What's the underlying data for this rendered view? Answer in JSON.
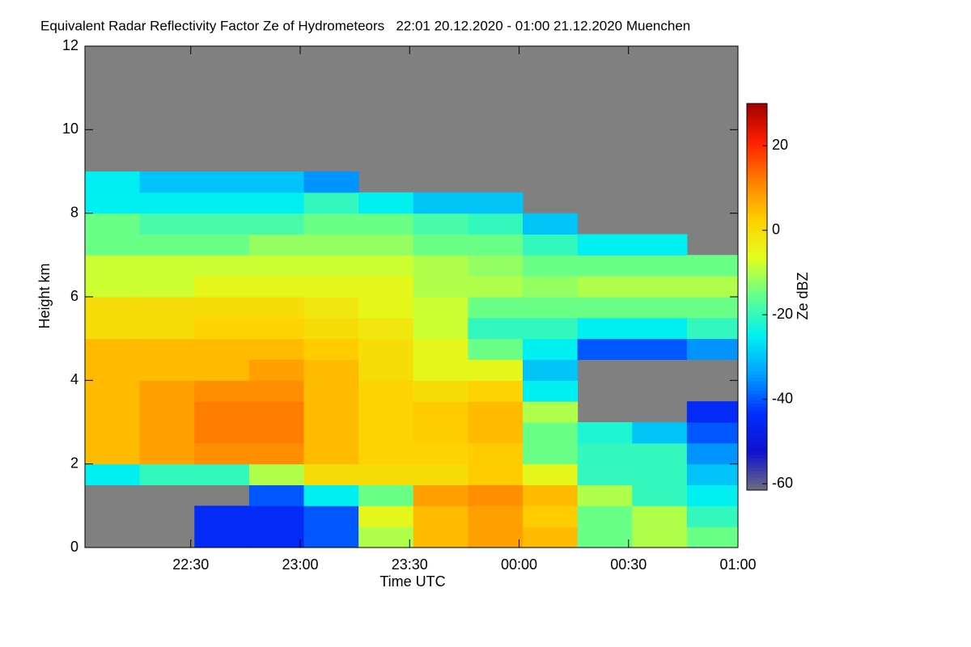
{
  "chart_data": {
    "type": "heatmap",
    "title": "Equivalent Radar Reflectivity Factor Ze of Hydrometeors   22:01 20.12.2020 - 01:00 21.12.2020 Muenchen",
    "x_label": "Time UTC",
    "y_label": "Height km",
    "colorbar_label": "Ze dBZ",
    "xlim": [
      1,
      180
    ],
    "xticks": [
      {
        "value": 30,
        "label": "22:30"
      },
      {
        "value": 60,
        "label": "23:00"
      },
      {
        "value": 90,
        "label": "23:30"
      },
      {
        "value": 120,
        "label": "00:00"
      },
      {
        "value": 150,
        "label": "00:30"
      },
      {
        "value": 180,
        "label": "01:00"
      }
    ],
    "ylim": [
      0,
      12
    ],
    "yticks": [
      0,
      2,
      4,
      6,
      8,
      10,
      12
    ],
    "xbins": [
      1,
      16,
      31,
      46,
      61,
      76,
      91,
      106,
      121,
      136,
      151,
      166,
      180
    ],
    "ybins": [
      0,
      0.5,
      1,
      1.5,
      2,
      2.5,
      3,
      3.5,
      4,
      4.5,
      5,
      5.5,
      6,
      6.5,
      7,
      7.5,
      8,
      8.5,
      9,
      9.5,
      10,
      10.5,
      11,
      11.5,
      12
    ],
    "z": [
      [
        null,
        null,
        null,
        -25,
        5,
        5,
        5,
        5,
        5,
        5,
        0,
        0,
        -8,
        -8,
        -15,
        -15,
        -25,
        -25,
        null,
        null,
        null,
        null,
        null,
        null
      ],
      [
        null,
        null,
        null,
        -20,
        8,
        8,
        8,
        8,
        5,
        5,
        0,
        0,
        -8,
        -8,
        -15,
        -18,
        -25,
        -30,
        null,
        null,
        null,
        null,
        null,
        null
      ],
      [
        -45,
        -45,
        null,
        -20,
        10,
        12,
        12,
        10,
        5,
        5,
        2,
        0,
        -5,
        -8,
        -15,
        -18,
        -25,
        -30,
        null,
        null,
        null,
        null,
        null,
        null
      ],
      [
        -45,
        -45,
        -40,
        -10,
        10,
        12,
        12,
        10,
        8,
        5,
        2,
        0,
        -5,
        -8,
        -12,
        -18,
        -25,
        -30,
        null,
        null,
        null,
        null,
        null,
        null
      ],
      [
        -40,
        -40,
        -25,
        0,
        5,
        5,
        5,
        5,
        5,
        3,
        0,
        -2,
        -5,
        -8,
        -12,
        -15,
        -20,
        -35,
        null,
        null,
        null,
        null,
        null,
        null
      ],
      [
        -10,
        -5,
        -15,
        0,
        2,
        2,
        2,
        2,
        0,
        0,
        -2,
        -5,
        -5,
        -8,
        -12,
        -15,
        -25,
        null,
        null,
        null,
        null,
        null,
        null,
        null
      ],
      [
        5,
        5,
        8,
        0,
        2,
        3,
        3,
        0,
        -5,
        -5,
        -8,
        -8,
        -10,
        -10,
        -15,
        -18,
        -30,
        null,
        null,
        null,
        null,
        null,
        null,
        null
      ],
      [
        8,
        8,
        10,
        3,
        3,
        5,
        5,
        2,
        -5,
        -15,
        -20,
        -15,
        -10,
        -12,
        -15,
        -20,
        -30,
        null,
        null,
        null,
        null,
        null,
        null,
        null
      ],
      [
        5,
        3,
        5,
        -5,
        -15,
        -15,
        -10,
        -25,
        -30,
        -25,
        -20,
        -15,
        -12,
        -15,
        -20,
        -30,
        null,
        null,
        null,
        null,
        null,
        null,
        null,
        null
      ],
      [
        -15,
        -15,
        -10,
        -20,
        -20,
        -22,
        null,
        null,
        null,
        -40,
        -25,
        -15,
        -10,
        -15,
        -25,
        null,
        null,
        null,
        null,
        null,
        null,
        null,
        null,
        null
      ],
      [
        -10,
        -10,
        -20,
        -20,
        -20,
        -30,
        null,
        null,
        null,
        -40,
        -25,
        -15,
        -10,
        -15,
        -25,
        null,
        null,
        null,
        null,
        null,
        null,
        null,
        null,
        null
      ],
      [
        -15,
        -20,
        -25,
        -30,
        -35,
        -40,
        -45,
        null,
        null,
        -35,
        -20,
        -15,
        -10,
        -15,
        null,
        null,
        null,
        null,
        null,
        null,
        null,
        null,
        null,
        null
      ]
    ],
    "zlim": [
      -61.5,
      30
    ],
    "zticks": [
      -60,
      -40,
      -20,
      0,
      20
    ],
    "colorscale": [
      "#6e6e80",
      "#1010d0",
      "#0030ff",
      "#00a0ff",
      "#00f0f0",
      "#60ff90",
      "#e0ff20",
      "#ffd000",
      "#ff8000",
      "#ff2000",
      "#a00000"
    ],
    "missing_color": "#808080"
  }
}
